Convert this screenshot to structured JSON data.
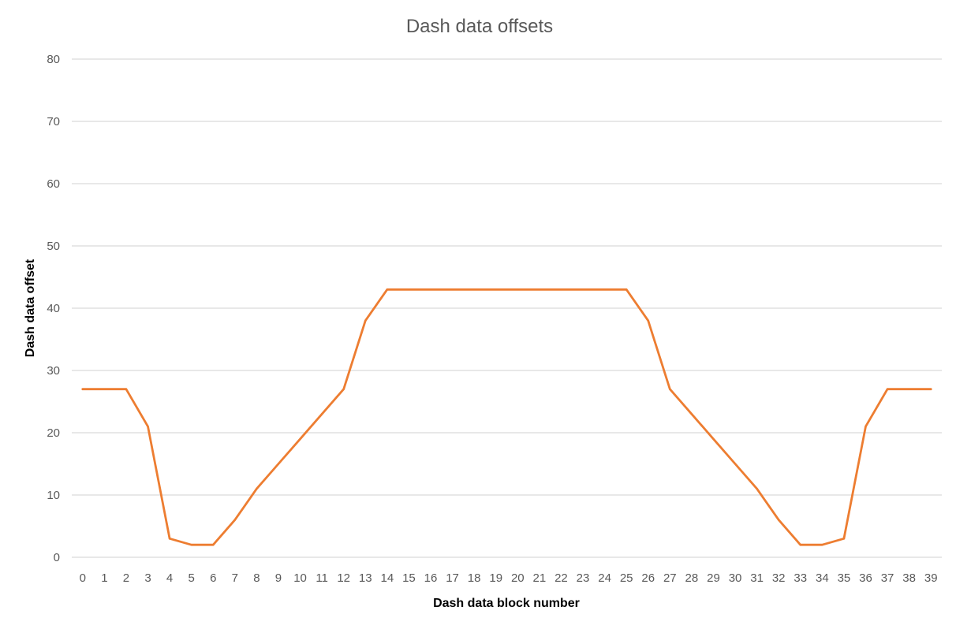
{
  "chart_data": {
    "type": "line",
    "title": "Dash data offsets",
    "xlabel": "Dash data block number",
    "ylabel": "Dash data offset",
    "ylim": [
      0,
      80
    ],
    "yticks": [
      0,
      10,
      20,
      30,
      40,
      50,
      60,
      70,
      80
    ],
    "grid": true,
    "legend": "none",
    "categories": [
      "0",
      "1",
      "2",
      "3",
      "4",
      "5",
      "6",
      "7",
      "8",
      "9",
      "10",
      "11",
      "12",
      "13",
      "14",
      "15",
      "16",
      "17",
      "18",
      "19",
      "20",
      "21",
      "22",
      "23",
      "24",
      "25",
      "26",
      "27",
      "28",
      "29",
      "30",
      "31",
      "32",
      "33",
      "34",
      "35",
      "36",
      "37",
      "38",
      "39"
    ],
    "series": [
      {
        "color": "#ed7d31",
        "values": [
          27,
          27,
          27,
          21,
          3,
          2,
          2,
          6,
          11,
          15,
          19,
          23,
          27,
          38,
          43,
          43,
          43,
          43,
          43,
          43,
          43,
          43,
          43,
          43,
          43,
          43,
          38,
          27,
          23,
          19,
          15,
          11,
          6,
          2,
          2,
          3,
          21,
          27,
          27,
          27
        ]
      }
    ]
  }
}
